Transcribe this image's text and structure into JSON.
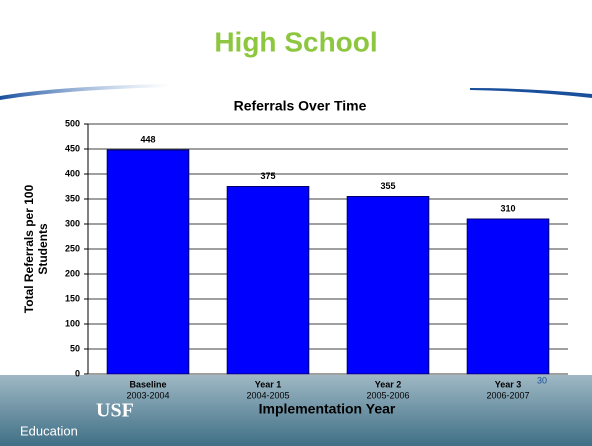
{
  "slide": {
    "title": "High School",
    "page_number": "30",
    "logos": [
      "Education",
      "USF"
    ]
  },
  "chart_data": {
    "type": "bar",
    "title": "Referrals Over Time",
    "categories": [
      "Baseline",
      "Year 1",
      "Year 2",
      "Year 3"
    ],
    "category_sublabels": [
      "2003-2004",
      "2004-2005",
      "2005-2006",
      "2006-2007"
    ],
    "values": [
      448,
      375,
      355,
      310
    ],
    "color": "#0000ff",
    "ylim": [
      0,
      500
    ],
    "yticks": [
      0,
      50,
      100,
      150,
      200,
      250,
      300,
      350,
      400,
      450,
      500
    ],
    "grid": true,
    "x_label": "Implementation Year",
    "y_label": [
      "Total Referrals per 100",
      "Students"
    ]
  }
}
